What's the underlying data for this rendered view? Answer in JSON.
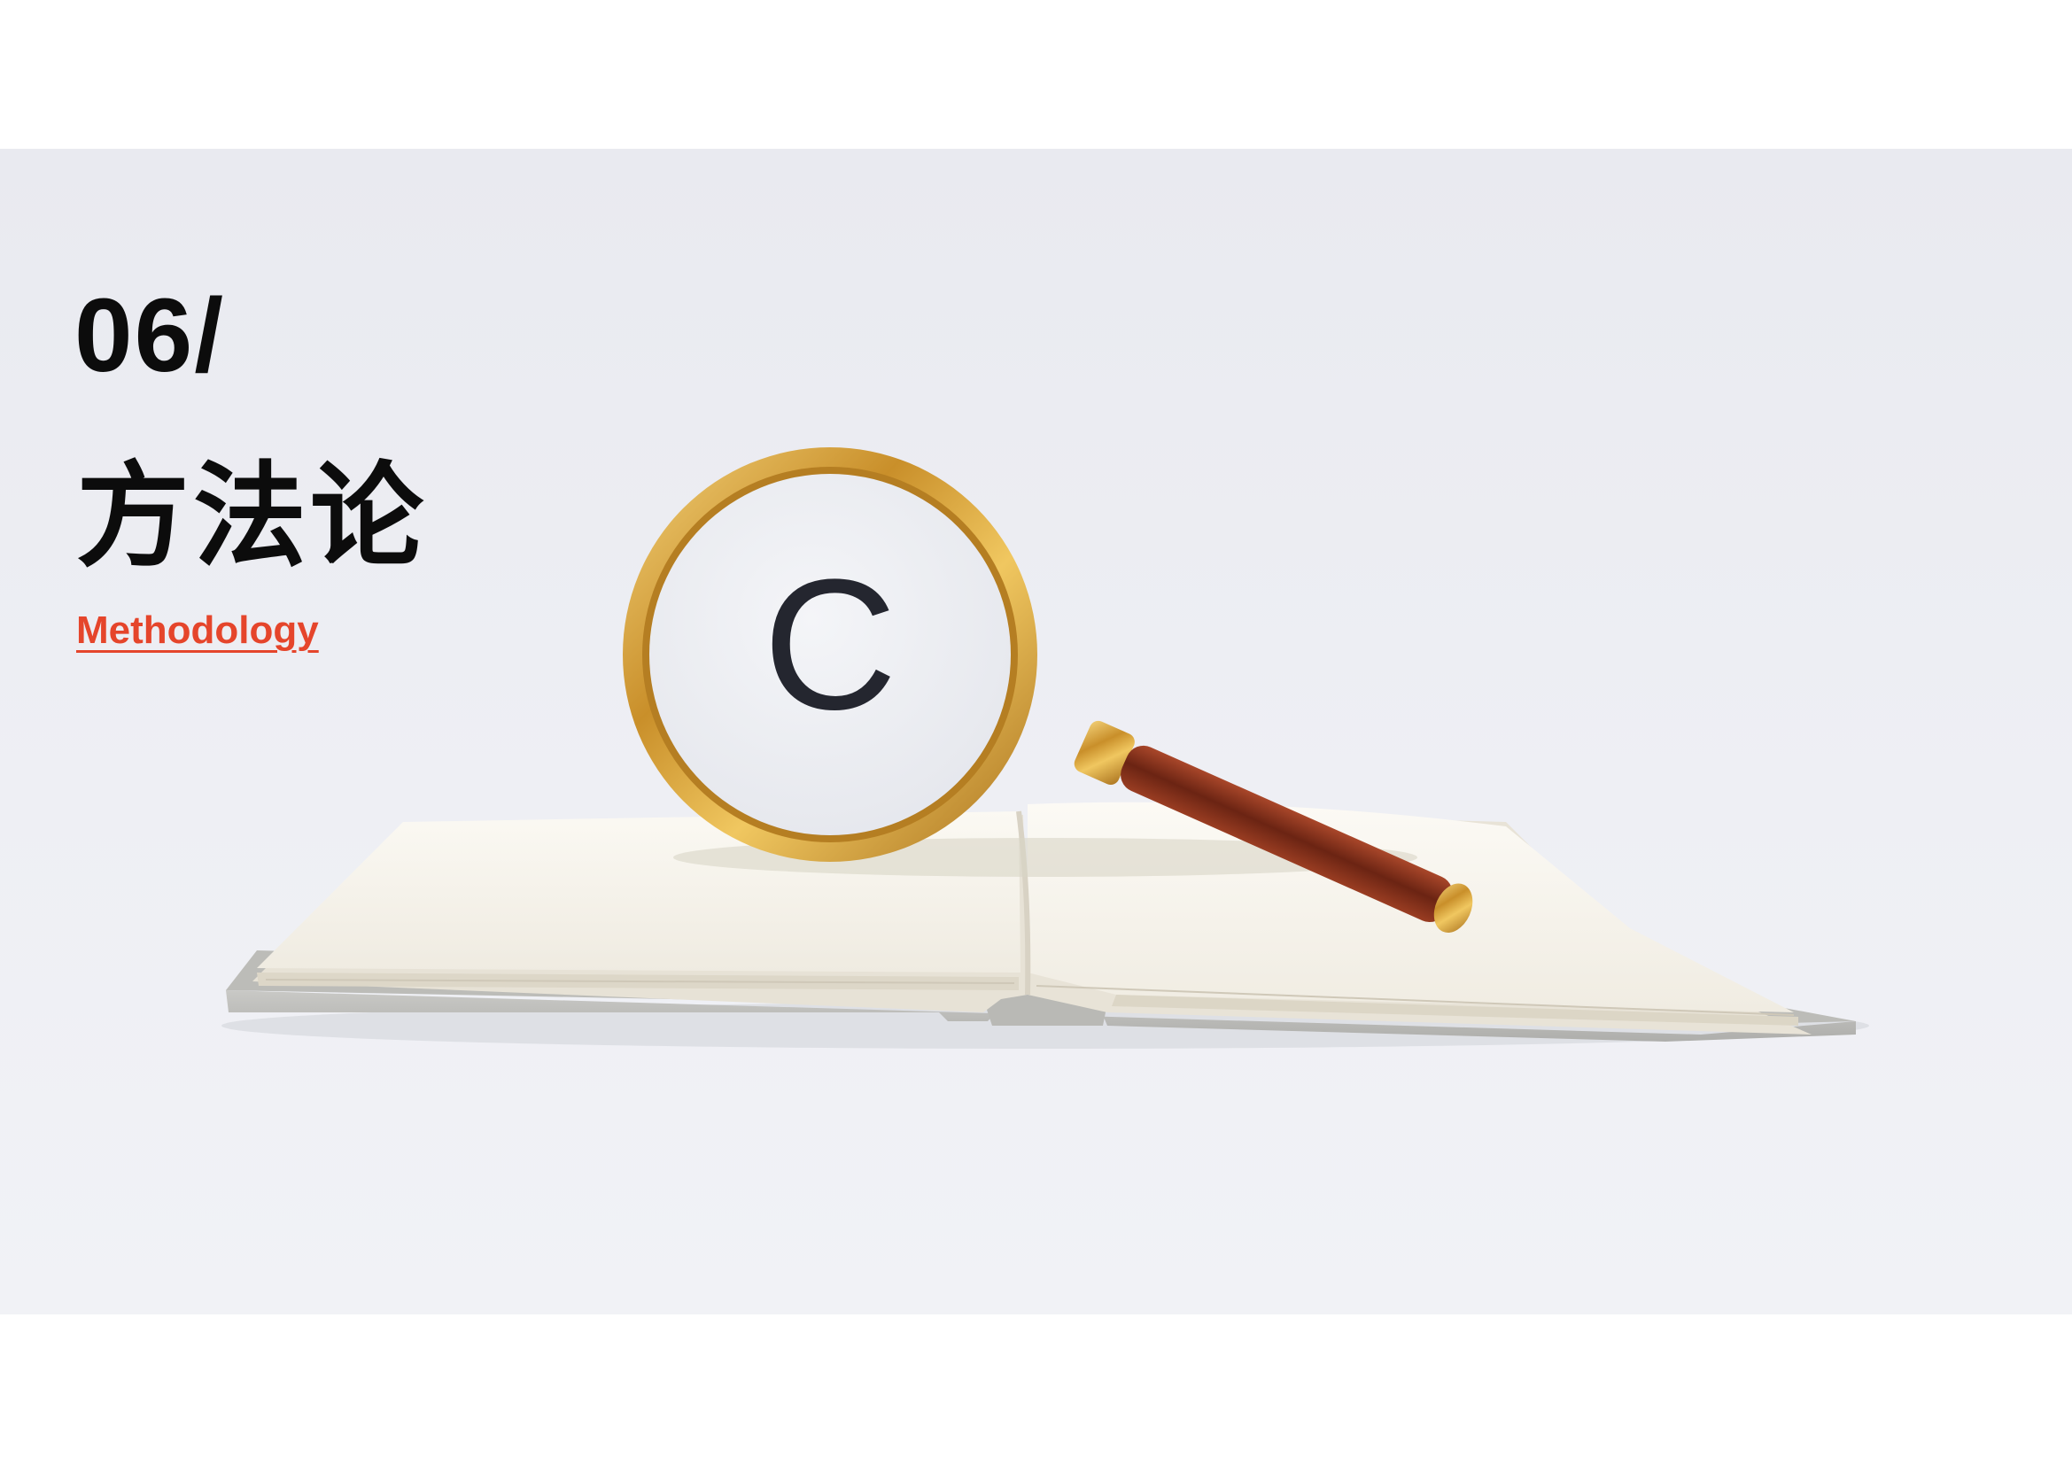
{
  "slide": {
    "number": "06/",
    "title": "方法论",
    "subtitle": "Methodology"
  },
  "photo": {
    "lens_letter": "C",
    "icons": [
      "magnifying-glass-icon",
      "open-book-icon"
    ]
  },
  "colors": {
    "background": "#ffffff",
    "photo_backdrop": "#eceef3",
    "title_text": "#0c0c0c",
    "accent": "#e5452b",
    "brass": "#d4a33c",
    "wood": "#7a2a16"
  }
}
